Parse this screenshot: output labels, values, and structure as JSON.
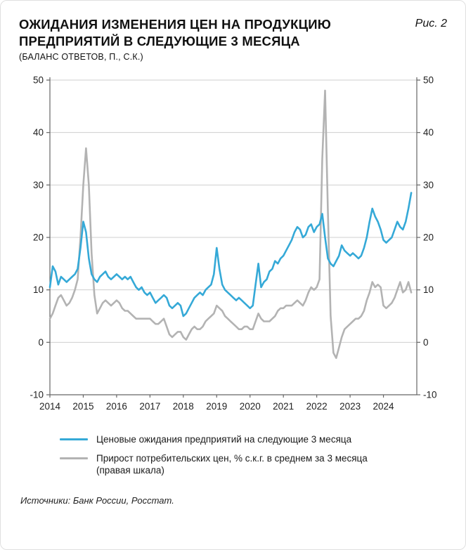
{
  "header": {
    "title_line1": "ОЖИДАНИЯ ИЗМЕНЕНИЯ ЦЕН НА ПРОДУКЦИЮ",
    "title_line2": "ПРЕДПРИЯТИЙ В СЛЕДУЮЩИЕ 3 МЕСЯЦА",
    "subtitle": "(БАЛАНС ОТВЕТОВ, П., С.К.)",
    "figure_label": "Рис. 2"
  },
  "chart_data": {
    "type": "line",
    "title": "Ожидания изменения цен на продукцию предприятий в следующие 3 месяца (баланс ответов, п., с.к.)",
    "x_start_year": 2014,
    "x_end_year": 2025,
    "x_tick_labels": [
      "2014",
      "2015",
      "2016",
      "2017",
      "2018",
      "2019",
      "2020",
      "2021",
      "2022",
      "2023",
      "2024"
    ],
    "ylim": [
      -10,
      50
    ],
    "y_ticks": [
      -10,
      0,
      10,
      20,
      30,
      40,
      50
    ],
    "grid": true,
    "legend_position": "bottom",
    "colors": {
      "grid": "#cfcfcf",
      "axis": "#666666",
      "tick_text": "#222222"
    },
    "series": [
      {
        "name": "Прирост потребительских цен, % с.к.г. в среднем за 3 месяца (правая шкала)",
        "color": "#b3b3b3",
        "axis": "right",
        "values": [
          4.5,
          5.5,
          7.0,
          8.5,
          9.0,
          8.0,
          7.0,
          7.5,
          8.5,
          10.0,
          12.0,
          20.0,
          30.0,
          37.0,
          30.0,
          17.0,
          9.0,
          5.5,
          6.5,
          7.5,
          8.0,
          7.5,
          7.0,
          7.5,
          8.0,
          7.5,
          6.5,
          6.0,
          6.0,
          5.5,
          5.0,
          4.5,
          4.5,
          4.5,
          4.5,
          4.5,
          4.5,
          4.0,
          3.5,
          3.5,
          4.0,
          4.5,
          3.0,
          1.5,
          1.0,
          1.5,
          2.0,
          2.0,
          1.0,
          0.5,
          1.5,
          2.5,
          3.0,
          2.5,
          2.5,
          3.0,
          4.0,
          4.5,
          5.0,
          5.5,
          7.0,
          6.5,
          6.0,
          5.0,
          4.5,
          4.0,
          3.5,
          3.0,
          2.5,
          2.5,
          3.0,
          3.0,
          2.5,
          2.5,
          4.0,
          5.5,
          4.5,
          4.0,
          4.0,
          4.0,
          4.5,
          5.0,
          6.0,
          6.5,
          6.5,
          7.0,
          7.0,
          7.0,
          7.5,
          8.0,
          7.5,
          7.0,
          8.0,
          9.5,
          10.5,
          10.0,
          10.5,
          12.0,
          35.0,
          48.0,
          25.0,
          5.0,
          -2.0,
          -3.0,
          -1.0,
          1.0,
          2.5,
          3.0,
          3.5,
          4.0,
          4.5,
          4.5,
          5.0,
          6.0,
          8.0,
          9.5,
          11.5,
          10.5,
          11.0,
          10.5,
          7.0,
          6.5,
          7.0,
          7.5,
          8.5,
          10.0,
          11.5,
          9.5,
          10.0,
          11.5,
          9.5
        ]
      },
      {
        "name": "Ценовые ожидания предприятий на следующие 3 месяца",
        "color": "#35a9d7",
        "axis": "left",
        "values": [
          10.5,
          14.5,
          13.5,
          11.0,
          12.5,
          12.0,
          11.5,
          12.0,
          12.5,
          13.0,
          14.0,
          18.0,
          23.0,
          21.0,
          16.0,
          13.0,
          12.0,
          11.5,
          12.5,
          13.0,
          13.5,
          12.5,
          12.0,
          12.5,
          13.0,
          12.5,
          12.0,
          12.5,
          12.0,
          12.5,
          11.5,
          10.5,
          10.0,
          10.5,
          9.5,
          9.0,
          9.5,
          8.5,
          7.5,
          8.0,
          8.5,
          9.0,
          8.5,
          7.0,
          6.5,
          7.0,
          7.5,
          7.0,
          5.0,
          5.5,
          6.5,
          7.5,
          8.5,
          9.0,
          9.5,
          9.0,
          10.0,
          10.5,
          11.0,
          13.0,
          18.0,
          14.0,
          11.0,
          10.0,
          9.5,
          9.0,
          8.5,
          8.0,
          8.5,
          8.0,
          7.5,
          7.0,
          6.5,
          7.0,
          11.0,
          15.0,
          10.5,
          11.5,
          12.0,
          13.5,
          14.0,
          15.5,
          15.0,
          16.0,
          16.5,
          17.5,
          18.5,
          19.5,
          21.0,
          22.0,
          21.5,
          20.0,
          20.5,
          22.0,
          22.5,
          21.0,
          22.0,
          22.5,
          24.5,
          20.0,
          16.0,
          15.0,
          14.5,
          15.5,
          16.5,
          18.5,
          17.5,
          17.0,
          16.5,
          17.0,
          16.5,
          16.0,
          16.5,
          18.0,
          20.0,
          23.0,
          25.5,
          24.0,
          23.0,
          21.5,
          19.5,
          19.0,
          19.5,
          20.0,
          21.5,
          23.0,
          22.0,
          21.5,
          23.0,
          25.5,
          28.5
        ]
      }
    ]
  },
  "legend": {
    "item1": "Ценовые ожидания предприятий на следующие 3 месяца",
    "item2_line1": "Прирост потребительских цен, % с.к.г. в среднем за 3 месяца",
    "item2_line2": "(правая шкала)"
  },
  "footer": {
    "source": "Источники: Банк России, Росстат."
  }
}
